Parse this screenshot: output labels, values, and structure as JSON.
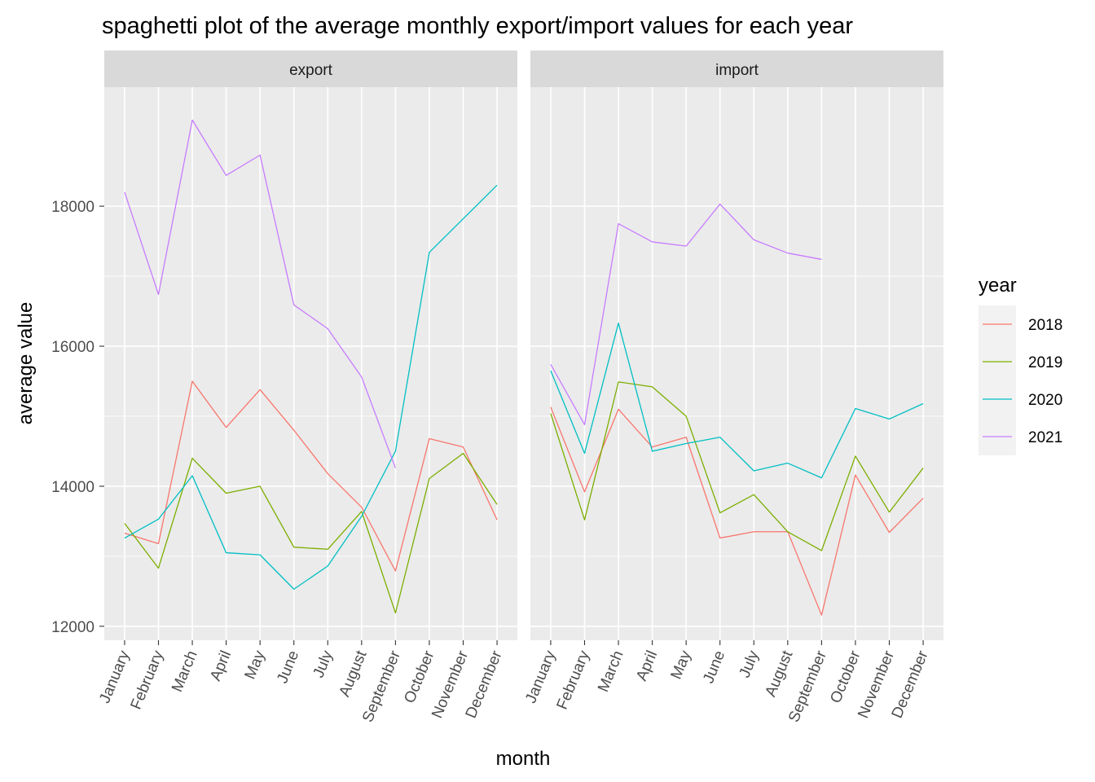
{
  "chart_data": {
    "type": "line",
    "title": "spaghetti plot of the average monthly export/import values for each year",
    "xlabel": "month",
    "ylabel": "average value",
    "ylim": [
      11800,
      19700
    ],
    "y_ticks": [
      12000,
      14000,
      16000,
      18000
    ],
    "y_tick_labels": [
      "12000",
      "14000",
      "16000",
      "18000"
    ],
    "categories": [
      "January",
      "February",
      "March",
      "April",
      "May",
      "June",
      "July",
      "August",
      "September",
      "October",
      "November",
      "December"
    ],
    "grid": true,
    "legend": {
      "title": "year",
      "placement": "right"
    },
    "colors": {
      "2018": "#F8766D",
      "2019": "#7CAE00",
      "2020": "#00BFC4",
      "2021": "#C77CFF"
    },
    "panels": [
      {
        "label": "export",
        "series": [
          {
            "name": "2018",
            "values": [
              13330,
              13180,
              15500,
              14840,
              15380,
              14800,
              14180,
              13700,
              12790,
              14680,
              14560,
              13520
            ]
          },
          {
            "name": "2019",
            "values": [
              13470,
              12830,
              14400,
              13900,
              14000,
              13130,
              13100,
              13640,
              12190,
              14110,
              14470,
              13740
            ]
          },
          {
            "name": "2020",
            "values": [
              13260,
              13530,
              14150,
              13050,
              13020,
              12530,
              12860,
              13570,
              14500,
              17340,
              17820,
              18300
            ]
          },
          {
            "name": "2021",
            "values": [
              18200,
              16740,
              19230,
              18440,
              18730,
              16590,
              16250,
              15560,
              14260,
              null,
              null,
              null
            ]
          }
        ]
      },
      {
        "label": "import",
        "series": [
          {
            "name": "2018",
            "values": [
              15130,
              13920,
              15100,
              14560,
              14700,
              13260,
              13350,
              13350,
              12160,
              14160,
              13340,
              13830
            ]
          },
          {
            "name": "2019",
            "values": [
              15040,
              13520,
              15490,
              15420,
              15000,
              13620,
              13880,
              13350,
              13080,
              14430,
              13630,
              14260
            ]
          },
          {
            "name": "2020",
            "values": [
              15650,
              14470,
              16330,
              14500,
              14610,
              14700,
              14220,
              14330,
              14120,
              15110,
              14960,
              15180
            ]
          },
          {
            "name": "2021",
            "values": [
              15740,
              14880,
              17750,
              17490,
              17430,
              18030,
              17520,
              17330,
              17240,
              null,
              null,
              null
            ]
          }
        ]
      }
    ]
  }
}
